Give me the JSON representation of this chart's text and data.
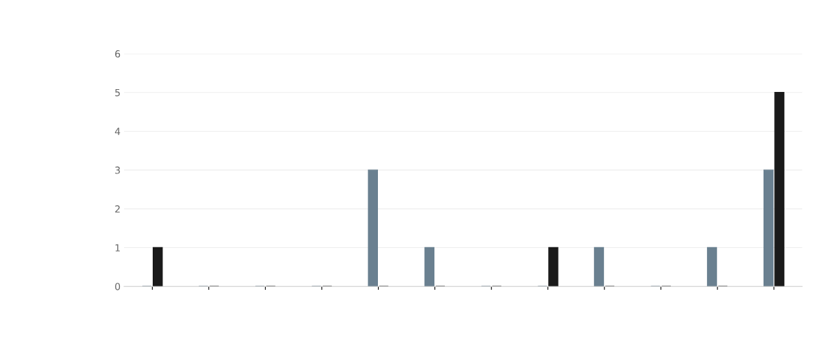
{
  "chart_data": {
    "type": "bar",
    "grid": "y",
    "ylim": [
      0,
      6
    ],
    "yticks": [
      0,
      1,
      2,
      3,
      4,
      5,
      6
    ],
    "categories": [
      null,
      null,
      null,
      null,
      null,
      null,
      null,
      null,
      null,
      null,
      null,
      null
    ],
    "series": [
      {
        "color": "#6a8090",
        "values": [
          0,
          0,
          0,
          0,
          3,
          1,
          0,
          0,
          1,
          0,
          1,
          3
        ]
      },
      {
        "color": "#1a1a1a",
        "values": [
          1,
          0,
          0,
          0,
          0,
          0,
          0,
          1,
          0,
          0,
          0,
          5
        ]
      }
    ]
  }
}
